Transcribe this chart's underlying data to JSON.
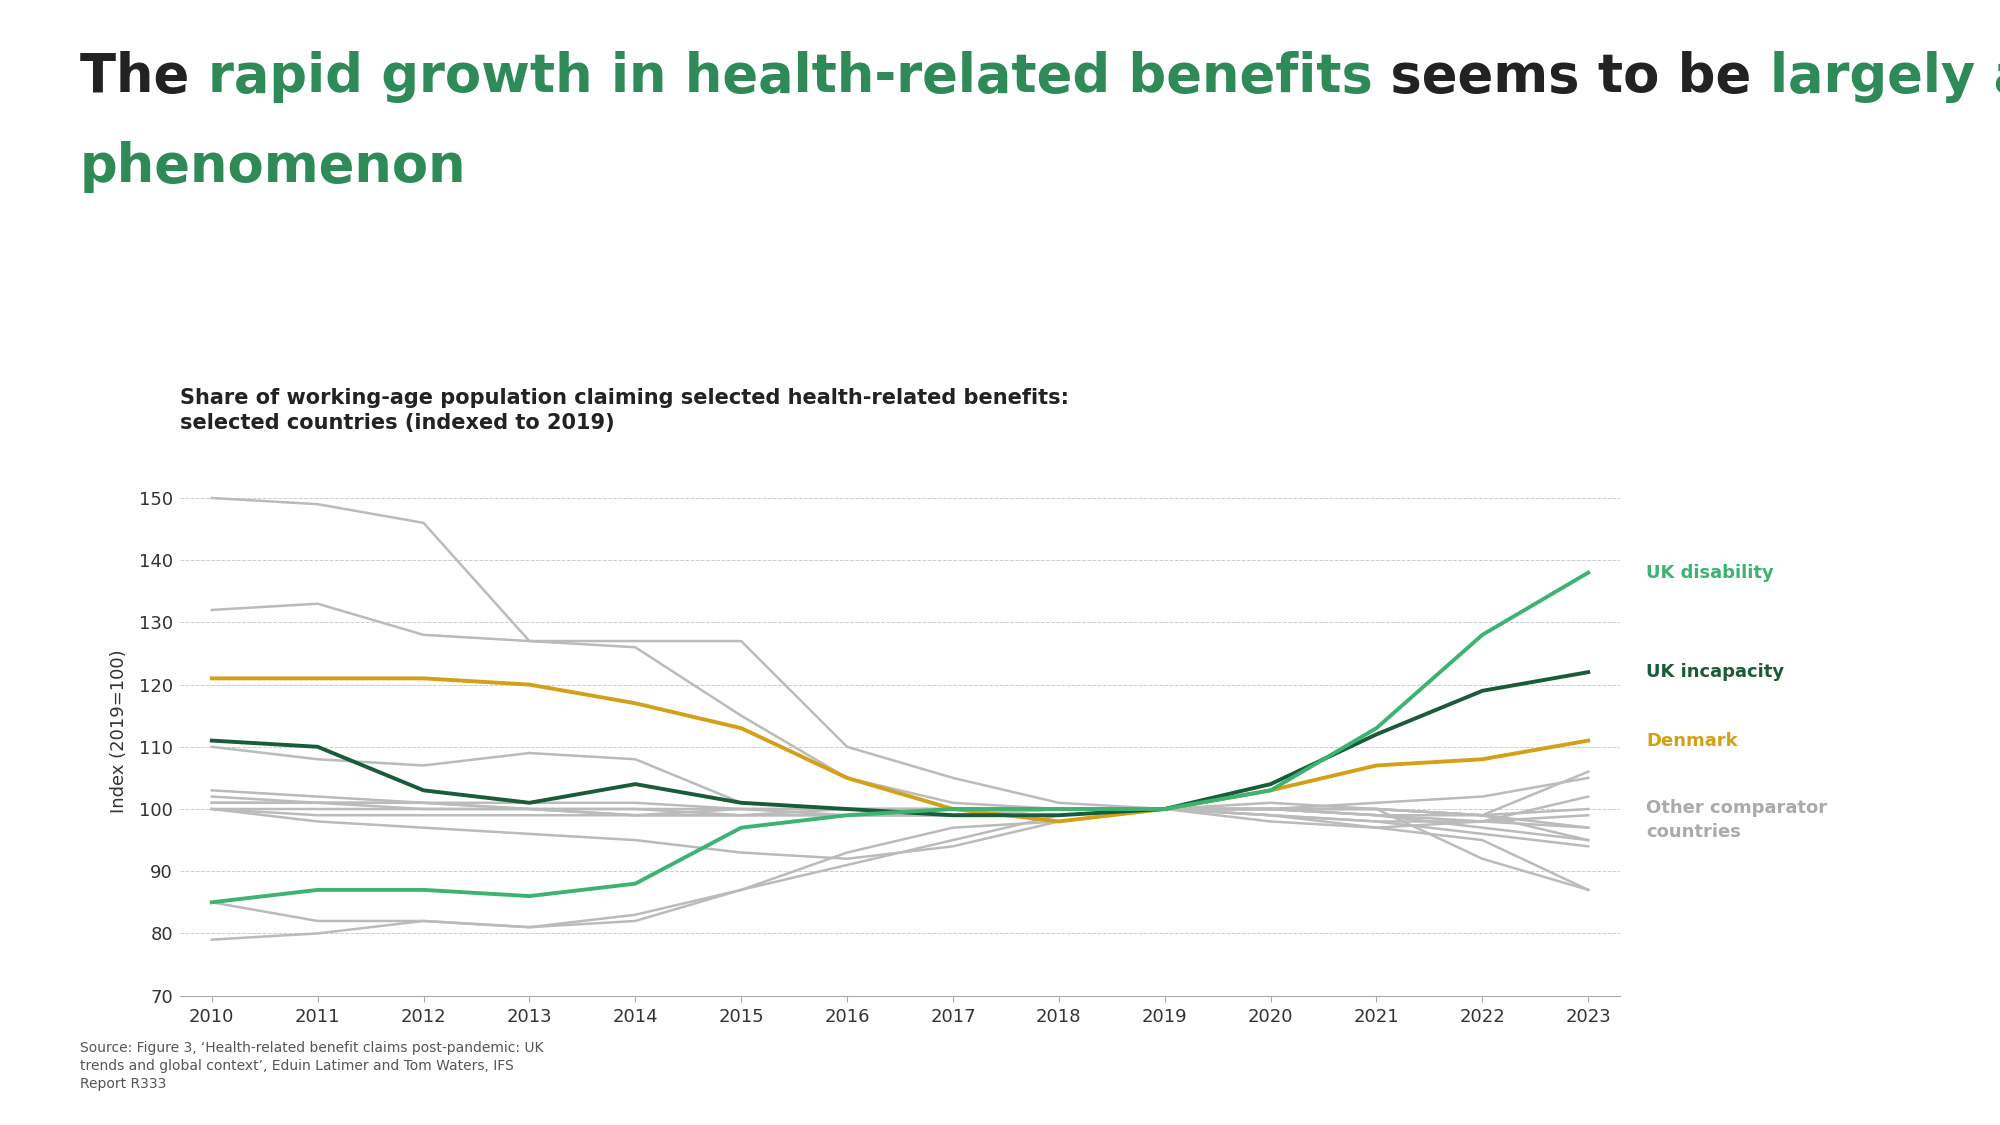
{
  "subtitle": "Share of working-age population claiming selected health-related benefits:\nselected countries (indexed to 2019)",
  "years": [
    2010,
    2011,
    2012,
    2013,
    2014,
    2015,
    2016,
    2017,
    2018,
    2019,
    2020,
    2021,
    2022,
    2023
  ],
  "uk_disability": [
    85,
    87,
    87,
    86,
    88,
    97,
    99,
    100,
    100,
    100,
    103,
    113,
    128,
    138
  ],
  "uk_incapacity": [
    111,
    110,
    103,
    101,
    104,
    101,
    100,
    99,
    99,
    100,
    104,
    112,
    119,
    122
  ],
  "denmark": [
    121,
    121,
    121,
    120,
    117,
    113,
    105,
    100,
    98,
    100,
    103,
    107,
    108,
    111
  ],
  "other_countries": [
    [
      150,
      149,
      146,
      127,
      127,
      127,
      110,
      105,
      101,
      100,
      101,
      100,
      99,
      106
    ],
    [
      132,
      133,
      128,
      127,
      126,
      115,
      105,
      101,
      100,
      100,
      98,
      97,
      98,
      102
    ],
    [
      110,
      108,
      107,
      109,
      108,
      101,
      100,
      99,
      100,
      100,
      100,
      101,
      102,
      105
    ],
    [
      101,
      101,
      101,
      101,
      101,
      100,
      100,
      100,
      100,
      100,
      99,
      98,
      98,
      99
    ],
    [
      101,
      101,
      101,
      100,
      100,
      100,
      99,
      99,
      100,
      100,
      100,
      99,
      99,
      100
    ],
    [
      102,
      101,
      100,
      100,
      99,
      99,
      99,
      99,
      100,
      100,
      100,
      99,
      97,
      95
    ],
    [
      100,
      100,
      100,
      100,
      99,
      100,
      100,
      100,
      100,
      100,
      100,
      100,
      99,
      97
    ],
    [
      100,
      99,
      99,
      99,
      99,
      99,
      100,
      100,
      100,
      100,
      100,
      99,
      98,
      97
    ],
    [
      85,
      82,
      82,
      81,
      82,
      87,
      91,
      95,
      99,
      100,
      99,
      97,
      95,
      87
    ],
    [
      100,
      98,
      97,
      96,
      95,
      93,
      92,
      94,
      98,
      100,
      99,
      98,
      96,
      94
    ],
    [
      103,
      102,
      101,
      100,
      100,
      99,
      99,
      99,
      100,
      100,
      100,
      100,
      99,
      95
    ],
    [
      79,
      80,
      82,
      81,
      83,
      87,
      93,
      97,
      98,
      100,
      100,
      100,
      92,
      87
    ]
  ],
  "uk_disability_color": "#3cb371",
  "uk_incapacity_color": "#1a5c3a",
  "denmark_color": "#d4a017",
  "other_color": "#bbbbbb",
  "background_color": "#ffffff",
  "ylim": [
    70,
    155
  ],
  "yticks": [
    70,
    80,
    90,
    100,
    110,
    120,
    130,
    140,
    150
  ],
  "ylabel": "Index (2019=100)",
  "source_text": "Source: Figure 3, ‘Health-related benefit claims post-pandemic: UK\ntrends and global context’, Eduin Latimer and Tom Waters, IFS\nReport R333",
  "title_line1_parts": [
    {
      "text": "The ",
      "color": "#222222"
    },
    {
      "text": "rapid growth in health-related benefits",
      "color": "#2e8b57"
    },
    {
      "text": " seems to be ",
      "color": "#222222"
    },
    {
      "text": "largely a UK",
      "color": "#2e8b57"
    }
  ],
  "title_line2_parts": [
    {
      "text": "phenomenon",
      "color": "#2e8b57"
    }
  ],
  "title_fontsize": 38,
  "subtitle_fontsize": 15,
  "axis_label_fontsize": 13,
  "tick_fontsize": 13,
  "annotation_fontsize": 13
}
